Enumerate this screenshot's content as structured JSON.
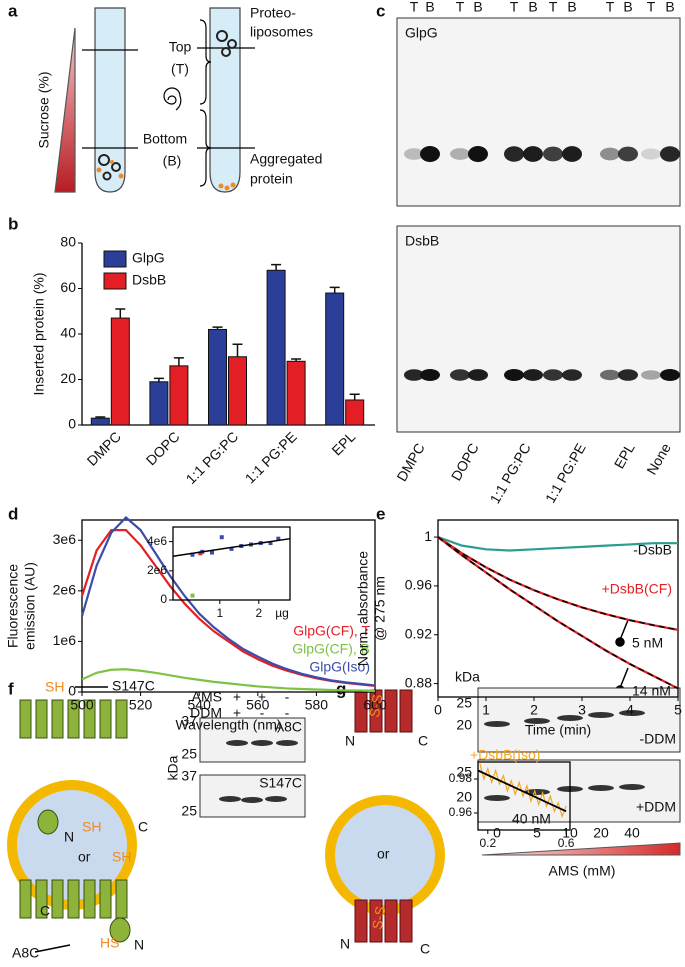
{
  "panels": {
    "a": {
      "label": "a",
      "texts": [
        "Sucrose (%)",
        "Top",
        "(T)",
        "Bottom",
        "(B)",
        "Proteo-",
        "liposomes",
        "Aggregated",
        "protein"
      ]
    },
    "b": {
      "label": "b"
    },
    "c": {
      "label": "c",
      "lanes_top": [
        "T",
        "B",
        "T",
        "B",
        "T",
        "B",
        "T",
        "B",
        "T",
        "B",
        "T",
        "B"
      ],
      "blots": [
        "GlpG",
        "DsbB"
      ],
      "lanes_bottom": [
        "DMPC",
        "DOPC",
        "1:1 PG:PC",
        "1:1 PG:PE",
        "EPL",
        "None"
      ]
    },
    "d": {
      "label": "d"
    },
    "e": {
      "label": "e",
      "annotations": [
        "+DsbB(CF)"
      ]
    },
    "f": {
      "label": "f",
      "diagram": [
        "SH",
        "S147C",
        "N",
        "SH",
        "C",
        "or",
        "SH",
        "C",
        "HS",
        "N",
        "A8C"
      ],
      "rows": [
        "AMS",
        "DDM"
      ],
      "ams": [
        "+",
        "+",
        "-"
      ],
      "ddm": [
        "+",
        "-",
        "-"
      ],
      "kda": "kDa",
      "markers": [
        "37",
        "25",
        "37",
        "25"
      ],
      "blots": [
        "A8C",
        "S147C"
      ]
    },
    "g": {
      "label": "g",
      "diagram": [
        "S-S",
        "N",
        "C",
        "or",
        "S-S",
        "N",
        "C"
      ],
      "kda": "kDa",
      "markers": [
        "25",
        "20",
        "25",
        "20"
      ],
      "blots": [
        "-DDM",
        "+DDM"
      ],
      "lanes": [
        "0",
        "5",
        "10",
        "20",
        "40"
      ],
      "x_label": "AMS (mM)"
    }
  },
  "chart_data": [
    {
      "type": "bar",
      "y_label": "Inserted protein (%)",
      "categories": [
        "DMPC",
        "DOPC",
        "1:1 PG:PC",
        "1:1 PG:PE",
        "EPL"
      ],
      "series": [
        {
          "name": "GlpG",
          "color": "#2b3f99",
          "values": [
            3,
            19,
            42,
            68,
            58
          ],
          "errors": [
            0.5,
            1.5,
            1,
            2.5,
            2.5
          ]
        },
        {
          "name": "DsbB",
          "color": "#e31e24",
          "values": [
            47,
            26,
            30,
            28,
            11
          ],
          "errors": [
            4,
            3.5,
            5.5,
            1,
            2.5
          ]
        }
      ],
      "ylim": [
        0,
        80
      ],
      "yticks": [
        0,
        20,
        40,
        60,
        80
      ],
      "legend": "upper left"
    },
    {
      "type": "line",
      "x_label": "Wavelength (nm)",
      "y_label": [
        "Fluorescence",
        "emission (AU)"
      ],
      "x": [
        500,
        505,
        510,
        515,
        520,
        525,
        530,
        535,
        540,
        545,
        550,
        555,
        560,
        565,
        570,
        575,
        580,
        585,
        590,
        595,
        600
      ],
      "series": [
        {
          "name": "GlpG(CF), T",
          "color": "#e31e24",
          "values": [
            1900000,
            2800000,
            3200000,
            3200000,
            2900000,
            2500000,
            2100000,
            1750000,
            1450000,
            1200000,
            1000000,
            800000,
            650000,
            520000,
            420000,
            340000,
            270000,
            220000,
            180000,
            150000,
            120000
          ]
        },
        {
          "name": "GlpG(CF), B",
          "color": "#7cc243",
          "values": [
            250000,
            380000,
            440000,
            450000,
            420000,
            380000,
            330000,
            280000,
            240000,
            200000,
            170000,
            140000,
            110000,
            90000,
            70000,
            60000,
            50000,
            40000,
            30000,
            30000,
            20000
          ]
        },
        {
          "name": "GlpG(Iso)",
          "color": "#3b4da8",
          "values": [
            1500000,
            2500000,
            3150000,
            3450000,
            3200000,
            2750000,
            2300000,
            1900000,
            1550000,
            1280000,
            1050000,
            850000,
            700000,
            560000,
            450000,
            360000,
            290000,
            230000,
            190000,
            160000,
            130000
          ]
        }
      ],
      "xlim": [
        500,
        600
      ],
      "xticks": [
        500,
        520,
        540,
        560,
        580,
        600
      ],
      "ylim": [
        0,
        3400000
      ],
      "yticks": [
        0,
        {
          "value": 1000000,
          "label": "1e6"
        },
        {
          "value": 2000000,
          "label": "2e6"
        },
        {
          "value": 3000000,
          "label": "3e6"
        }
      ],
      "legend": "right"
    },
    {
      "type": "scatter",
      "x_label": "µg",
      "series": [
        {
          "color": "#3b4da8",
          "x": [
            0.3,
            0.55,
            0.8,
            1.05,
            1.3,
            1.55,
            1.8,
            2.05,
            2.3,
            2.5
          ],
          "values": [
            3100000,
            3300000,
            3250000,
            4300000,
            3500000,
            3700000,
            3800000,
            3900000,
            3900000,
            4200000
          ]
        },
        {
          "color": "#e31e24",
          "x": [
            0.5
          ],
          "values": [
            3200000
          ]
        },
        {
          "color": "#7cc243",
          "x": [
            0.3
          ],
          "values": [
            300000
          ]
        }
      ],
      "fit": {
        "x": [
          -0.2,
          2.8
        ],
        "values": [
          3000000,
          4200000
        ]
      },
      "xlim": [
        -0.2,
        2.8
      ],
      "xticks": [
        1,
        2
      ],
      "ylim": [
        0,
        5000000
      ],
      "yticks": [
        0,
        {
          "value": 2000000,
          "label": "2e6"
        },
        {
          "value": 4000000,
          "label": "4e6"
        }
      ]
    },
    {
      "type": "line",
      "x_label": "Time (min)",
      "y_label": [
        "Norm. absorbance",
        "@ 275 nm"
      ],
      "x": [
        0,
        0.5,
        1,
        1.5,
        2,
        2.5,
        3,
        3.5,
        4,
        4.5,
        5
      ],
      "series": [
        {
          "name": "-DsbB",
          "color": "#2a9d8f",
          "values": [
            1,
            0.993,
            0.99,
            0.989,
            0.99,
            0.991,
            0.992,
            0.993,
            0.994,
            0.995,
            0.995
          ]
        },
        {
          "name": "5 nM",
          "color": "#e31e24",
          "values": [
            1,
            0.9867,
            0.9752,
            0.965,
            0.9565,
            0.949,
            0.9424,
            0.9368,
            0.9319,
            0.9277,
            0.924
          ]
        },
        {
          "name": "14 nM",
          "color": "#e31e24",
          "values": [
            1,
            0.985,
            0.971,
            0.957,
            0.944,
            0.931,
            0.919,
            0.907,
            0.896,
            0.886,
            0.876
          ]
        }
      ],
      "xlim": [
        0,
        5
      ],
      "xticks": [
        0,
        1,
        2,
        3,
        4,
        5
      ],
      "ylim": [
        0.869,
        1.014
      ],
      "yticks": [
        0.88,
        0.92,
        0.96,
        1
      ]
    },
    {
      "type": "line",
      "title": "+DsbB(Iso)",
      "x": [
        0.16,
        0.18,
        0.2,
        0.22,
        0.24,
        0.26,
        0.28,
        0.3,
        0.32,
        0.34,
        0.36,
        0.38,
        0.4,
        0.42,
        0.44,
        0.46,
        0.48,
        0.5,
        0.52,
        0.54,
        0.56,
        0.58,
        0.6
      ],
      "series": [
        {
          "name": "40 nM",
          "color": "#f5a623",
          "values": [
            0.989,
            0.98,
            0.986,
            0.978,
            0.985,
            0.977,
            0.982,
            0.973,
            0.979,
            0.971,
            0.978,
            0.97,
            0.976,
            0.967,
            0.973,
            0.965,
            0.972,
            0.964,
            0.97,
            0.961,
            0.966,
            0.958,
            0.964
          ]
        }
      ],
      "fit": {
        "x": [
          0.15,
          0.6
        ],
        "values": [
          0.985,
          0.961
        ]
      },
      "xlim": [
        0.15,
        0.62
      ],
      "xticks": [
        0.2,
        0.6
      ],
      "ylim": [
        0.95,
        0.99
      ],
      "yticks": [
        0.96,
        0.98
      ]
    }
  ]
}
